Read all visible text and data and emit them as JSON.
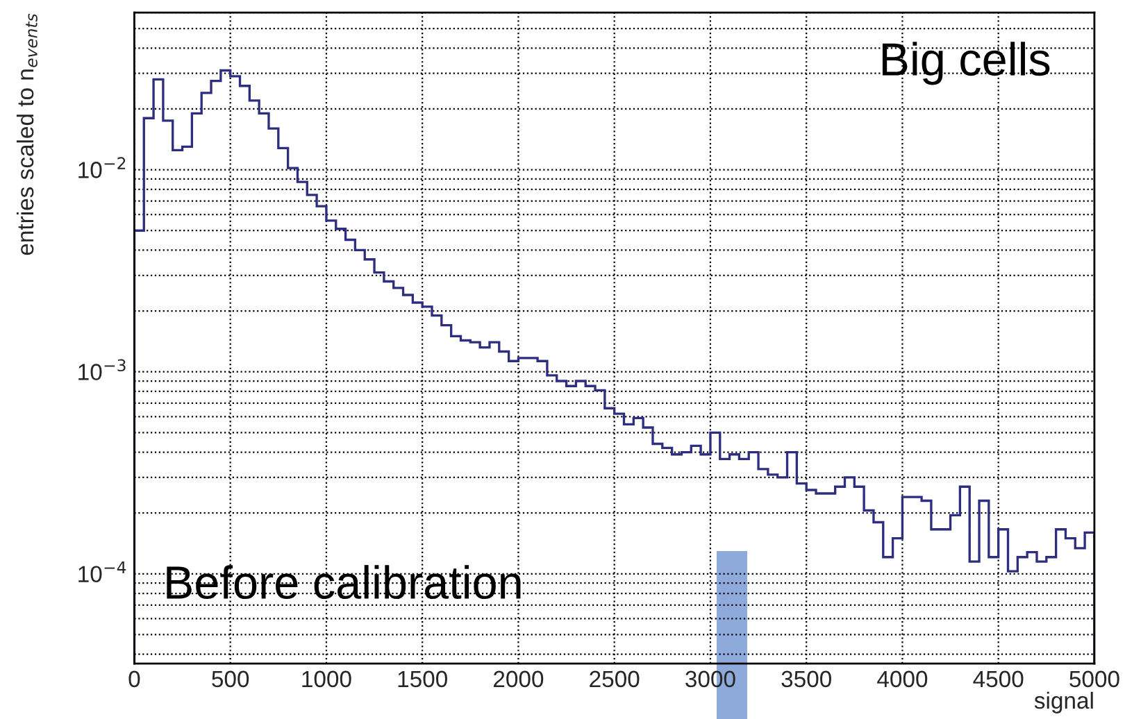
{
  "chart_data": {
    "type": "histogram",
    "xlabel": "signal",
    "ylabel": "entries scaled to n$_{events}$",
    "bins": [
      0,
      50,
      100,
      150,
      200,
      250,
      300,
      350,
      400,
      450,
      500,
      550,
      600,
      650,
      700,
      750,
      800,
      850,
      900,
      950,
      1000,
      1050,
      1100,
      1150,
      1200,
      1250,
      1300,
      1350,
      1400,
      1450,
      1500,
      1550,
      1600,
      1650,
      1700,
      1750,
      1800,
      1850,
      1900,
      1950,
      2000,
      2050,
      2100,
      2150,
      2200,
      2250,
      2300,
      2350,
      2400,
      2450,
      2500,
      2550,
      2600,
      2650,
      2700,
      2750,
      2800,
      2850,
      2900,
      2950,
      3000,
      3050,
      3100,
      3150,
      3200,
      3250,
      3300,
      3350,
      3400,
      3450,
      3500,
      3550,
      3600,
      3650,
      3700,
      3750,
      3800,
      3850,
      3900,
      3950,
      4000,
      4050,
      4100,
      4150,
      4200,
      4250,
      4300,
      4350,
      4400,
      4450,
      4500,
      4550,
      4600,
      4650,
      4700,
      4750,
      4800,
      4850,
      4900,
      4950,
      5000
    ],
    "values": [
      0.005,
      0.018,
      0.028,
      0.0175,
      0.0125,
      0.013,
      0.019,
      0.024,
      0.0275,
      0.031,
      0.029,
      0.026,
      0.022,
      0.019,
      0.016,
      0.0128,
      0.0102,
      0.0087,
      0.0075,
      0.0066,
      0.0056,
      0.0051,
      0.0045,
      0.004,
      0.0036,
      0.0031,
      0.0028,
      0.0026,
      0.0024,
      0.0022,
      0.0021,
      0.0019,
      0.0017,
      0.0015,
      0.00143,
      0.0014,
      0.00132,
      0.0014,
      0.00126,
      0.00113,
      0.00117,
      0.00117,
      0.00113,
      0.00096,
      0.0009,
      0.00085,
      0.0009,
      0.00085,
      0.00081,
      0.00066,
      0.00062,
      0.00055,
      0.00059,
      0.00053,
      0.00044,
      0.00042,
      0.00039,
      0.0004,
      0.00043,
      0.00039,
      0.0005,
      0.00037,
      0.00039,
      0.00037,
      0.0004,
      0.00033,
      0.00031,
      0.0003,
      0.0004,
      0.00028,
      0.00026,
      0.00025,
      0.00025,
      0.00027,
      0.0003,
      0.00027,
      0.000206,
      0.00018,
      0.000121,
      0.00015,
      0.00024,
      0.00024,
      0.00023,
      0.000166,
      0.000166,
      0.000195,
      0.00027,
      0.000115,
      0.00023,
      0.000121,
      0.000166,
      0.000103,
      0.000121,
      0.000128,
      0.000115,
      0.000121,
      0.000166,
      0.00015,
      0.000134,
      0.00016
    ],
    "color": "#2e2e80",
    "log": "y",
    "grid": true,
    "xlim": [
      0,
      5000
    ],
    "xticks": [
      0,
      500,
      1000,
      1500,
      2000,
      2500,
      3000,
      3500,
      4000,
      4500,
      5000
    ],
    "ylim": [
      3.6e-05,
      0.06
    ],
    "yticks": [
      {
        "value": 0.0001,
        "label": "10$^{−4}$"
      },
      {
        "value": 0.001,
        "label": "10$^{−3}$"
      },
      {
        "value": 0.01,
        "label": "10$^{−2}$"
      }
    ],
    "annotations": [
      "Big cells",
      "Before calibration"
    ]
  }
}
